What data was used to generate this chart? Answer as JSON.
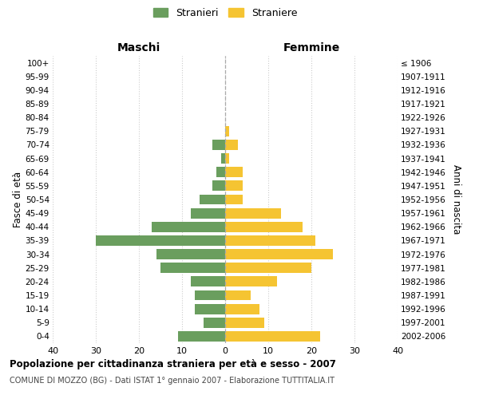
{
  "age_groups": [
    "0-4",
    "5-9",
    "10-14",
    "15-19",
    "20-24",
    "25-29",
    "30-34",
    "35-39",
    "40-44",
    "45-49",
    "50-54",
    "55-59",
    "60-64",
    "65-69",
    "70-74",
    "75-79",
    "80-84",
    "85-89",
    "90-94",
    "95-99",
    "100+"
  ],
  "birth_years": [
    "2002-2006",
    "1997-2001",
    "1992-1996",
    "1987-1991",
    "1982-1986",
    "1977-1981",
    "1972-1976",
    "1967-1971",
    "1962-1966",
    "1957-1961",
    "1952-1956",
    "1947-1951",
    "1942-1946",
    "1937-1941",
    "1932-1936",
    "1927-1931",
    "1922-1926",
    "1917-1921",
    "1912-1916",
    "1907-1911",
    "≤ 1906"
  ],
  "males": [
    11,
    5,
    7,
    7,
    8,
    15,
    16,
    30,
    17,
    8,
    6,
    3,
    2,
    1,
    3,
    0,
    0,
    0,
    0,
    0,
    0
  ],
  "females": [
    22,
    9,
    8,
    6,
    12,
    20,
    25,
    21,
    18,
    13,
    4,
    4,
    4,
    1,
    3,
    1,
    0,
    0,
    0,
    0,
    0
  ],
  "male_color": "#6a9e5e",
  "female_color": "#f5c432",
  "background_color": "#ffffff",
  "grid_color": "#cccccc",
  "xlim": 40,
  "title": "Popolazione per cittadinanza straniera per età e sesso - 2007",
  "subtitle": "COMUNE DI MOZZO (BG) - Dati ISTAT 1° gennaio 2007 - Elaborazione TUTTITALIA.IT",
  "header_left": "Maschi",
  "header_right": "Femmine",
  "ylabel_left": "Fasce di età",
  "ylabel_right": "Anni di nascita",
  "legend_male": "Stranieri",
  "legend_female": "Straniere",
  "xtick_vals": [
    -40,
    -30,
    -20,
    -10,
    0,
    10,
    20,
    30,
    40
  ]
}
